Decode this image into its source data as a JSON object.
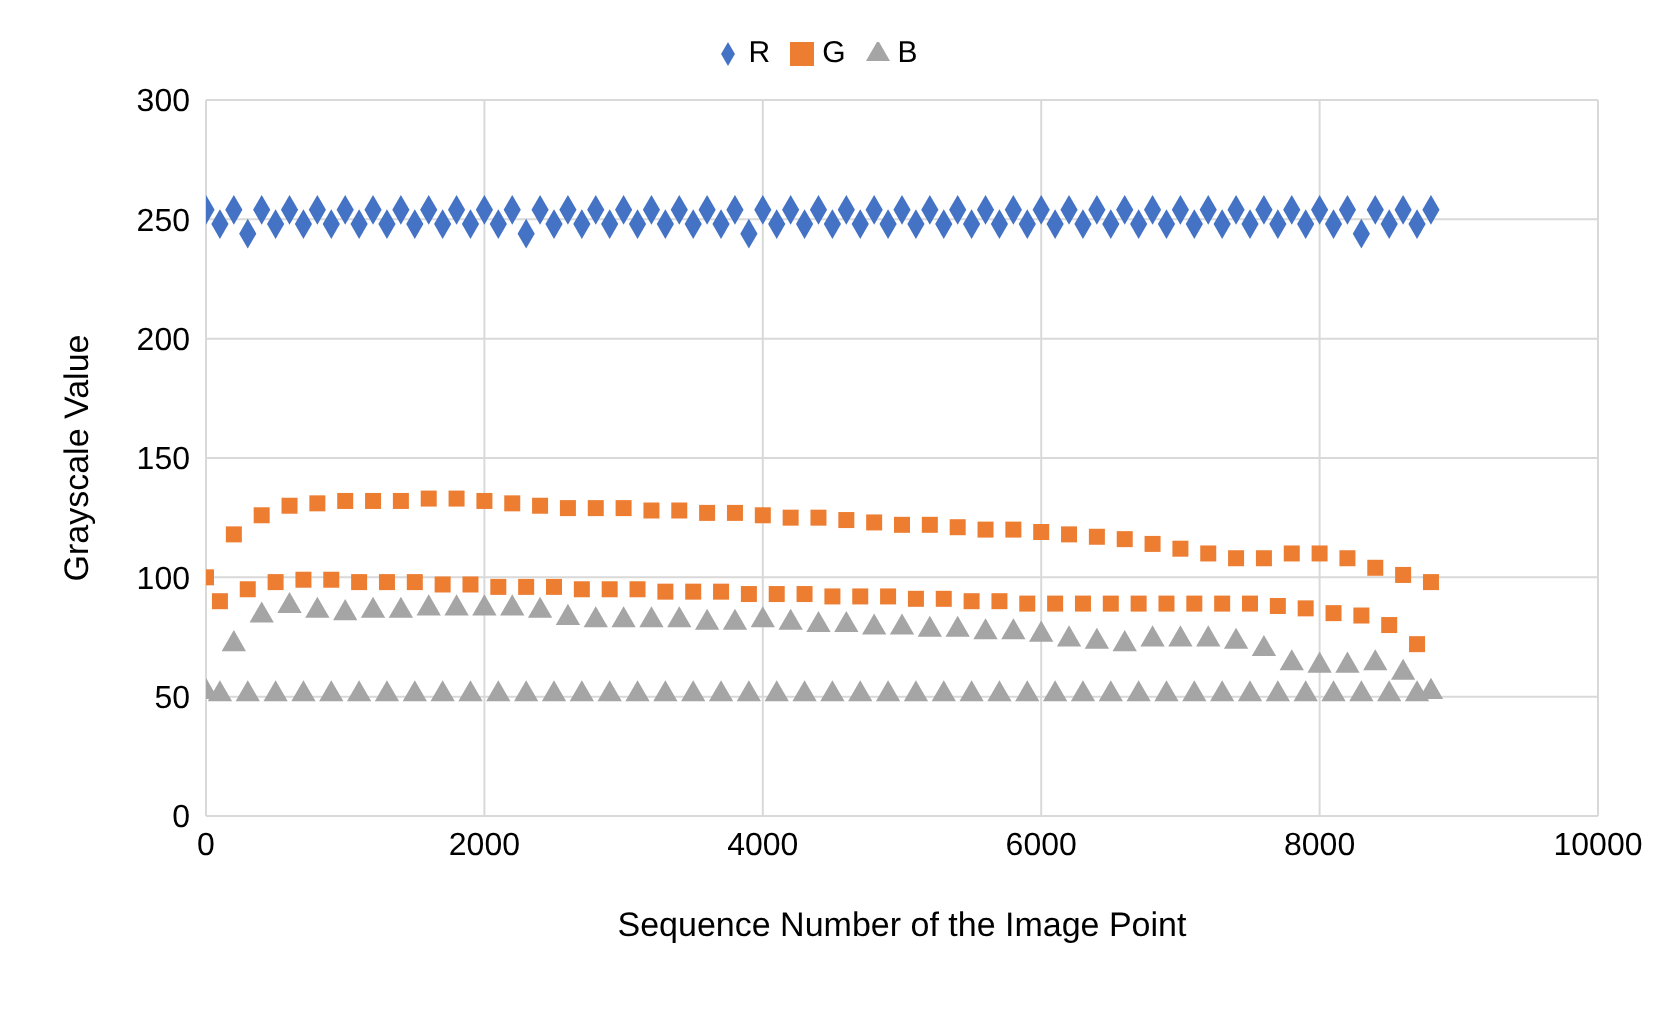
{
  "chart_data": {
    "type": "scatter",
    "xlabel": "Sequence Number of the Image Point",
    "ylabel": "Grayscale Value",
    "x": [
      0,
      100,
      200,
      300,
      400,
      500,
      600,
      700,
      800,
      900,
      1000,
      1100,
      1200,
      1300,
      1400,
      1500,
      1600,
      1700,
      1800,
      1900,
      2000,
      2100,
      2200,
      2300,
      2400,
      2500,
      2600,
      2700,
      2800,
      2900,
      3000,
      3100,
      3200,
      3300,
      3400,
      3500,
      3600,
      3700,
      3800,
      3900,
      4000,
      4100,
      4200,
      4300,
      4400,
      4500,
      4600,
      4700,
      4800,
      4900,
      5000,
      5100,
      5200,
      5300,
      5400,
      5500,
      5600,
      5700,
      5800,
      5900,
      6000,
      6100,
      6200,
      6300,
      6400,
      6500,
      6600,
      6700,
      6800,
      6900,
      7000,
      7100,
      7200,
      7300,
      7400,
      7500,
      7600,
      7700,
      7800,
      7900,
      8000,
      8100,
      8200,
      8300,
      8400,
      8500,
      8600,
      8700,
      8800
    ],
    "series": [
      {
        "name": "R",
        "color": "#4472c4",
        "marker": "diamond",
        "values": [
          254,
          248,
          254,
          244,
          254,
          248,
          254,
          248,
          254,
          248,
          254,
          248,
          254,
          248,
          254,
          248,
          254,
          248,
          254,
          248,
          254,
          248,
          254,
          244,
          254,
          248,
          254,
          248,
          254,
          248,
          254,
          248,
          254,
          248,
          254,
          248,
          254,
          248,
          254,
          244,
          254,
          248,
          254,
          248,
          254,
          248,
          254,
          248,
          254,
          248,
          254,
          248,
          254,
          248,
          254,
          248,
          254,
          248,
          254,
          248,
          254,
          248,
          254,
          248,
          254,
          248,
          254,
          248,
          254,
          248,
          254,
          248,
          254,
          248,
          254,
          248,
          254,
          248,
          254,
          248,
          254,
          248,
          254,
          244,
          254,
          248,
          254,
          248,
          254
        ]
      },
      {
        "name": "G",
        "color": "#ed7d31",
        "marker": "square",
        "values": [
          100,
          90,
          118,
          95,
          126,
          98,
          130,
          99,
          131,
          99,
          132,
          98,
          132,
          98,
          132,
          98,
          133,
          97,
          133,
          97,
          132,
          96,
          131,
          96,
          130,
          96,
          129,
          95,
          129,
          95,
          129,
          95,
          128,
          94,
          128,
          94,
          127,
          94,
          127,
          93,
          126,
          93,
          125,
          93,
          125,
          92,
          124,
          92,
          123,
          92,
          122,
          91,
          122,
          91,
          121,
          90,
          120,
          90,
          120,
          89,
          119,
          89,
          118,
          89,
          117,
          89,
          116,
          89,
          114,
          89,
          112,
          89,
          110,
          89,
          108,
          89,
          108,
          88,
          110,
          87,
          110,
          85,
          108,
          84,
          104,
          80,
          101,
          72,
          98
        ]
      },
      {
        "name": "B",
        "color": "#a5a5a5",
        "marker": "triangle",
        "values": [
          52,
          51,
          72,
          51,
          84,
          51,
          88,
          51,
          86,
          51,
          85,
          51,
          86,
          51,
          86,
          51,
          87,
          51,
          87,
          51,
          87,
          51,
          87,
          51,
          86,
          51,
          83,
          51,
          82,
          51,
          82,
          51,
          82,
          51,
          82,
          51,
          81,
          51,
          81,
          51,
          82,
          51,
          81,
          51,
          80,
          51,
          80,
          51,
          79,
          51,
          79,
          51,
          78,
          51,
          78,
          51,
          77,
          51,
          77,
          51,
          76,
          51,
          74,
          51,
          73,
          51,
          72,
          51,
          74,
          51,
          74,
          51,
          74,
          51,
          73,
          51,
          70,
          51,
          64,
          51,
          63,
          51,
          63,
          51,
          64,
          51,
          60,
          51,
          52
        ]
      }
    ],
    "xlim": [
      0,
      10000
    ],
    "xticks": [
      0,
      2000,
      4000,
      6000,
      8000,
      10000
    ],
    "ylim": [
      0,
      300
    ],
    "yticks": [
      0,
      50,
      100,
      150,
      200,
      250,
      300
    ],
    "grid": true,
    "legend": "top"
  }
}
